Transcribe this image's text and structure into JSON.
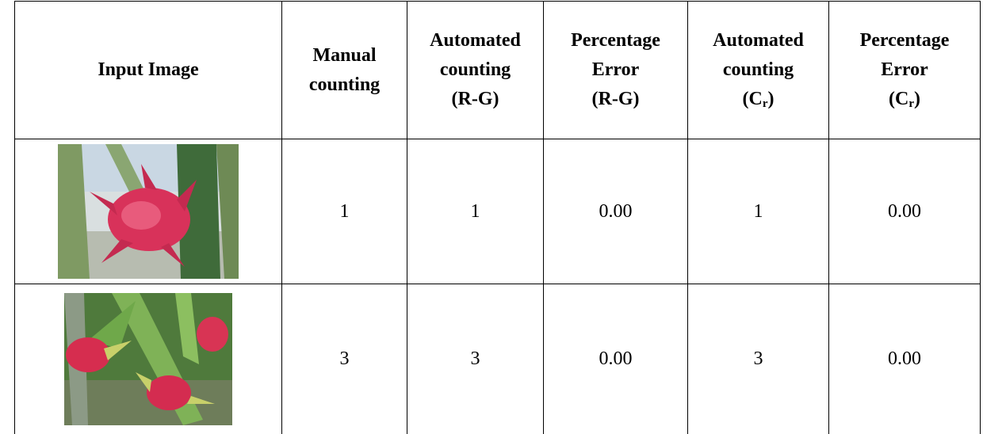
{
  "table": {
    "header": [
      {
        "lines": [
          "Input Image"
        ]
      },
      {
        "lines": [
          "Manual",
          "counting"
        ]
      },
      {
        "lines": [
          "Automated",
          "counting",
          "(R-G)"
        ]
      },
      {
        "lines": [
          "Percentage",
          "Error",
          "(R-G)"
        ]
      },
      {
        "lines": [
          "Automated",
          "counting",
          {
            "text": "(C",
            "sub": "r",
            "tail": ")"
          }
        ]
      },
      {
        "lines": [
          "Percentage",
          "Error",
          {
            "text": "(C",
            "sub": "r",
            "tail": ")"
          }
        ]
      }
    ],
    "rows": [
      [
        "1",
        "1",
        "0.00",
        "1",
        "0.00"
      ],
      [
        "3",
        "3",
        "0.00",
        "3",
        "0.00"
      ]
    ]
  }
}
